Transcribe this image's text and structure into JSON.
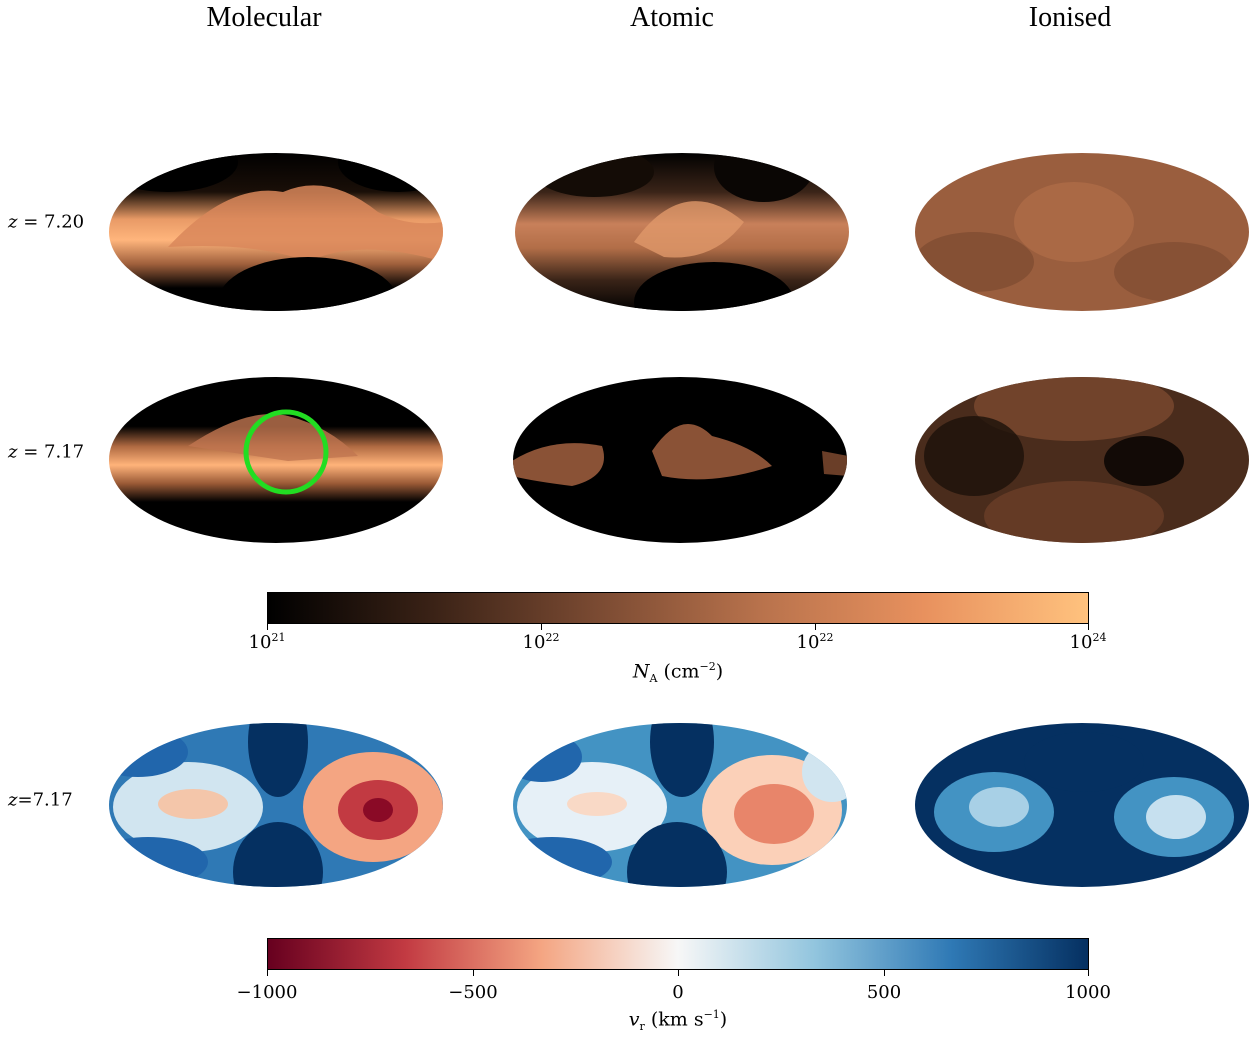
{
  "columns": [
    "Molecular",
    "Atomic",
    "Ionised"
  ],
  "rows": [
    {
      "var": "z",
      "value": "7.20"
    },
    {
      "var": "z",
      "value": "7.17"
    },
    {
      "var": "z",
      "value": "7.17"
    }
  ],
  "colorbar_density": {
    "ticks": [
      {
        "base": "10",
        "exp": "21"
      },
      {
        "base": "10",
        "exp": "22"
      },
      {
        "base": "10",
        "exp": "22"
      },
      {
        "base": "10",
        "exp": "24"
      }
    ],
    "label_symbol": "N",
    "label_sub": "A",
    "label_unit": "(cm",
    "label_unit_exp": "−2",
    "label_close": ")",
    "colors": [
      "#000000",
      "#3a2216",
      "#7a4a32",
      "#b8724c",
      "#e8915e",
      "#ffc27e"
    ]
  },
  "colorbar_velocity": {
    "ticks": [
      "−1000",
      "−500",
      "0",
      "500",
      "1000"
    ],
    "label_symbol": "v",
    "label_sub": "r",
    "label_unit": "(km s",
    "label_unit_exp": "−1",
    "label_close": ")",
    "colors": [
      "#67001f",
      "#c23a42",
      "#f4a582",
      "#f7f7f7",
      "#92c5de",
      "#2f79b5",
      "#053061"
    ]
  },
  "highlight_circle_color": "#22dd22"
}
